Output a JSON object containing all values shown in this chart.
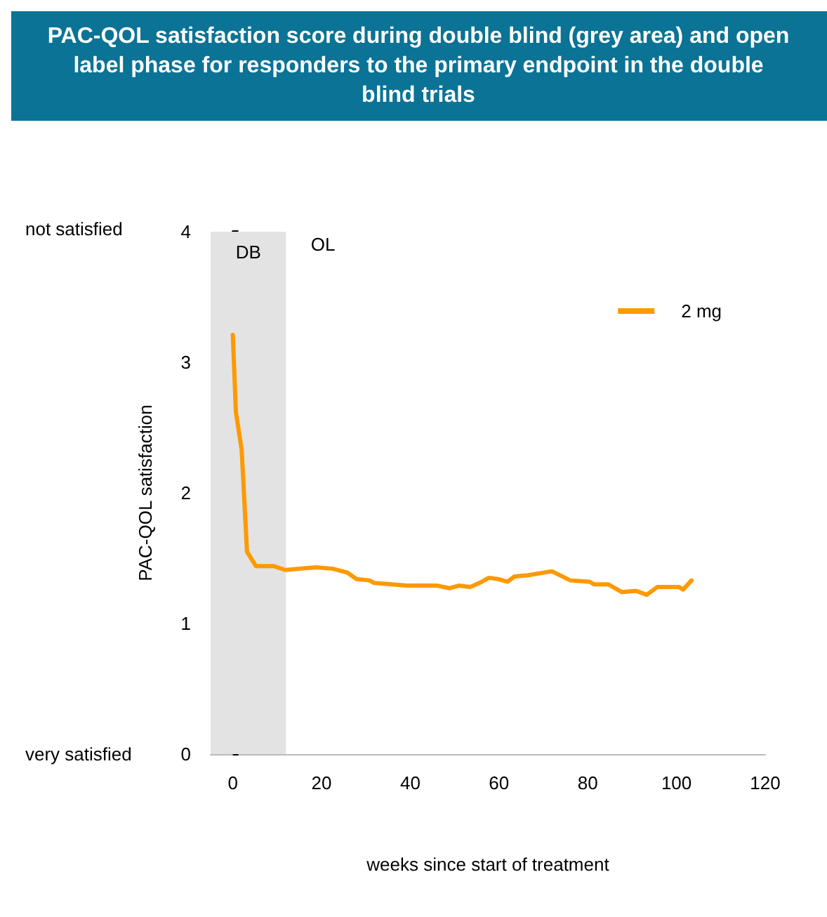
{
  "chart_data": {
    "type": "line",
    "title": "PAC-QOL satisfaction score during double blind (grey area) and open label phase for responders to the primary endpoint in the double blind trials",
    "xlabel": "weeks since start of treatment",
    "ylabel": "PAC-QOL satisfaction",
    "x": [
      0,
      0.7,
      2,
      3.2,
      5.2,
      9.2,
      11.8,
      18.7,
      22.4,
      25.8,
      27.9,
      30.8,
      31.9,
      39.3,
      46.1,
      48.8,
      50.9,
      53.5,
      55.6,
      57.7,
      59.8,
      61.9,
      63.5,
      66.6,
      71.9,
      76.1,
      80.4,
      81.4,
      84.6,
      87.7,
      90.9,
      93.3,
      95.7,
      100.5,
      101.5,
      103.4
    ],
    "series": [
      {
        "name": "2 mg",
        "color": "#ff9900",
        "values": [
          3.21,
          2.62,
          2.33,
          1.55,
          1.44,
          1.44,
          1.41,
          1.43,
          1.42,
          1.39,
          1.34,
          1.33,
          1.31,
          1.29,
          1.29,
          1.27,
          1.29,
          1.28,
          1.31,
          1.35,
          1.34,
          1.32,
          1.36,
          1.37,
          1.4,
          1.33,
          1.32,
          1.3,
          1.3,
          1.24,
          1.25,
          1.22,
          1.28,
          1.28,
          1.26,
          1.33
        ]
      }
    ],
    "xlim": [
      -5,
      120
    ],
    "xticks": [
      0,
      20,
      40,
      60,
      80,
      100,
      120
    ],
    "ylim": [
      0,
      4
    ],
    "yticks": [
      0,
      1,
      2,
      3,
      4
    ],
    "bands": [
      {
        "axis": "x",
        "from": -5,
        "to": 12,
        "label": "DB",
        "color": "#e3e3e3"
      }
    ],
    "annotations": [
      "OL",
      "not satisfied",
      "very satisfied"
    ],
    "legend": "top right",
    "grid": false,
    "marker": "none",
    "line_style": "solid"
  }
}
